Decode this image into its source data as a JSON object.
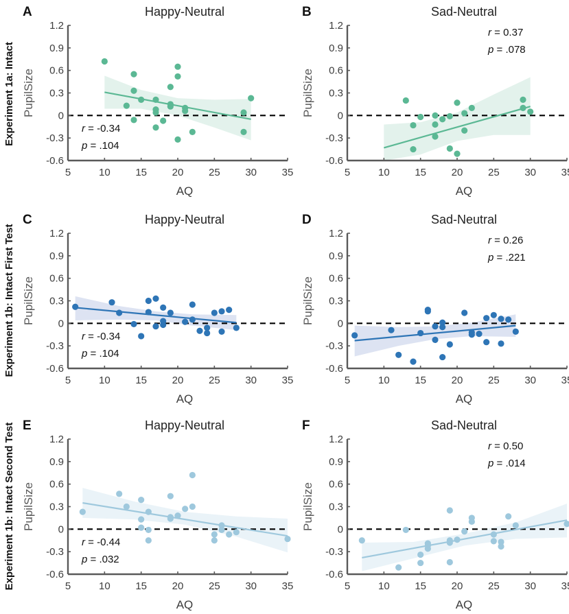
{
  "chart_data": {
    "type": "scatter",
    "row_labels": [
      "Experiment 1a: Intact",
      "Experiment 1b: Intact First Test",
      "Experiment 1b: Intact Second Test"
    ],
    "xlabel": "AQ",
    "ylabel": "PupilSize",
    "xlim": [
      5,
      35
    ],
    "ylim": [
      -0.6,
      1.2
    ],
    "xticks": [
      5,
      10,
      15,
      20,
      25,
      30,
      35
    ],
    "yticks": [
      -0.6,
      -0.3,
      0,
      0.3,
      0.6,
      0.9,
      1.2
    ],
    "ytick_labels": [
      "-0.6",
      "-0.3",
      "0",
      "0.3",
      "0.6",
      "0.9",
      "1.2"
    ],
    "reference_line": {
      "y": 0,
      "style": "dashed",
      "color": "#000000"
    },
    "grid": false,
    "panels": [
      {
        "letter": "A",
        "title": "Happy-Neutral",
        "row": 0,
        "col": 0,
        "color": "#5bb894",
        "band_color": "#e3f2ec",
        "stat_r": "-0.34",
        "stat_p": ".104",
        "stat_position": "bottom-left",
        "fit": {
          "x": [
            10,
            30
          ],
          "y": [
            0.31,
            -0.05
          ]
        },
        "band": {
          "x": [
            10,
            15,
            20,
            25,
            30
          ],
          "upper": [
            0.53,
            0.34,
            0.23,
            0.21,
            0.22
          ],
          "lower": [
            0.09,
            0.09,
            0.0,
            -0.16,
            -0.33
          ]
        },
        "points": [
          [
            10,
            0.72
          ],
          [
            13,
            0.13
          ],
          [
            14,
            0.55
          ],
          [
            14,
            0.33
          ],
          [
            14,
            -0.06
          ],
          [
            15,
            0.21
          ],
          [
            17,
            0.21
          ],
          [
            17,
            0.08
          ],
          [
            17,
            0.04
          ],
          [
            17,
            -0.16
          ],
          [
            18,
            -0.07
          ],
          [
            19,
            0.38
          ],
          [
            19,
            0.15
          ],
          [
            19,
            0.12
          ],
          [
            20,
            0.65
          ],
          [
            20,
            0.52
          ],
          [
            20,
            -0.32
          ],
          [
            21,
            0.1
          ],
          [
            21,
            0.06
          ],
          [
            22,
            -0.22
          ],
          [
            29,
            0.04
          ],
          [
            29,
            -0.22
          ],
          [
            30,
            0.23
          ]
        ]
      },
      {
        "letter": "B",
        "title": "Sad-Neutral",
        "row": 0,
        "col": 1,
        "color": "#5bb894",
        "band_color": "#e3f2ec",
        "stat_r": "0.37",
        "stat_p": ".078",
        "stat_position": "top-right",
        "fit": {
          "x": [
            10,
            30
          ],
          "y": [
            -0.43,
            0.12
          ]
        },
        "band": {
          "x": [
            10,
            15,
            20,
            25,
            30
          ],
          "upper": [
            -0.12,
            -0.09,
            0.04,
            0.28,
            0.51
          ],
          "lower": [
            -0.74,
            -0.52,
            -0.34,
            -0.26,
            -0.26
          ]
        },
        "points": [
          [
            13,
            0.2
          ],
          [
            14,
            -0.13
          ],
          [
            14,
            -0.45
          ],
          [
            15,
            -0.02
          ],
          [
            17,
            0.0
          ],
          [
            17,
            -0.12
          ],
          [
            17,
            -0.28
          ],
          [
            18,
            -0.05
          ],
          [
            19,
            -0.01
          ],
          [
            19,
            -0.44
          ],
          [
            20,
            0.17
          ],
          [
            20,
            -0.51
          ],
          [
            21,
            0.03
          ],
          [
            21,
            -0.2
          ],
          [
            22,
            0.1
          ],
          [
            29,
            0.21
          ],
          [
            29,
            0.1
          ],
          [
            30,
            0.05
          ]
        ]
      },
      {
        "letter": "C",
        "title": "Happy-Neutral",
        "row": 1,
        "col": 0,
        "color": "#2e75b6",
        "band_color": "#dde3f2",
        "stat_r": "-0.34",
        "stat_p": ".104",
        "stat_position": "bottom-left",
        "fit": {
          "x": [
            6,
            28
          ],
          "y": [
            0.21,
            0.01
          ]
        },
        "band": {
          "x": [
            6,
            12,
            17,
            22,
            28
          ],
          "upper": [
            0.36,
            0.23,
            0.16,
            0.12,
            0.11
          ],
          "lower": [
            0.04,
            0.05,
            0.04,
            -0.03,
            -0.09
          ]
        },
        "points": [
          [
            6,
            0.22
          ],
          [
            11,
            0.28
          ],
          [
            12,
            0.14
          ],
          [
            14,
            -0.01
          ],
          [
            15,
            -0.17
          ],
          [
            16,
            0.3
          ],
          [
            16,
            0.15
          ],
          [
            17,
            0.33
          ],
          [
            17,
            -0.04
          ],
          [
            18,
            0.21
          ],
          [
            18,
            0.03
          ],
          [
            18,
            -0.02
          ],
          [
            19,
            0.14
          ],
          [
            21,
            0.02
          ],
          [
            22,
            0.25
          ],
          [
            22,
            0.05
          ],
          [
            23,
            -0.1
          ],
          [
            24,
            -0.06
          ],
          [
            24,
            -0.13
          ],
          [
            25,
            0.14
          ],
          [
            26,
            0.16
          ],
          [
            26,
            -0.11
          ],
          [
            27,
            0.18
          ],
          [
            28,
            -0.06
          ]
        ]
      },
      {
        "letter": "D",
        "title": "Sad-Neutral",
        "row": 1,
        "col": 1,
        "color": "#2e75b6",
        "band_color": "#dde3f2",
        "stat_r": "0.26",
        "stat_p": ".221",
        "stat_position": "top-right",
        "fit": {
          "x": [
            6,
            28
          ],
          "y": [
            -0.23,
            -0.03
          ]
        },
        "band": {
          "x": [
            6,
            12,
            17,
            22,
            28
          ],
          "upper": [
            -0.03,
            -0.05,
            -0.04,
            0.01,
            0.12
          ],
          "lower": [
            -0.44,
            -0.3,
            -0.21,
            -0.17,
            -0.18
          ]
        },
        "points": [
          [
            6,
            -0.16
          ],
          [
            11,
            -0.09
          ],
          [
            12,
            -0.42
          ],
          [
            14,
            -0.51
          ],
          [
            15,
            -0.13
          ],
          [
            16,
            0.18
          ],
          [
            16,
            0.16
          ],
          [
            17,
            -0.04
          ],
          [
            17,
            -0.22
          ],
          [
            18,
            0.01
          ],
          [
            18,
            -0.05
          ],
          [
            18,
            -0.45
          ],
          [
            19,
            -0.28
          ],
          [
            21,
            0.14
          ],
          [
            22,
            -0.12
          ],
          [
            22,
            -0.15
          ],
          [
            23,
            -0.14
          ],
          [
            24,
            0.07
          ],
          [
            24,
            -0.25
          ],
          [
            25,
            0.11
          ],
          [
            26,
            0.06
          ],
          [
            26,
            -0.27
          ],
          [
            27,
            0.05
          ],
          [
            28,
            -0.11
          ]
        ]
      },
      {
        "letter": "E",
        "title": "Happy-Neutral",
        "row": 2,
        "col": 0,
        "color": "#9ec8dd",
        "band_color": "#eaf3f8",
        "stat_r": "-0.44",
        "stat_p": ".032",
        "stat_position": "bottom-left",
        "fit": {
          "x": [
            7,
            35
          ],
          "y": [
            0.35,
            -0.09
          ]
        },
        "band": {
          "x": [
            7,
            14,
            21,
            28,
            35
          ],
          "upper": [
            0.55,
            0.37,
            0.23,
            0.17,
            0.14
          ],
          "lower": [
            0.15,
            0.13,
            0.06,
            -0.1,
            -0.31
          ]
        },
        "points": [
          [
            7,
            0.23
          ],
          [
            12,
            0.47
          ],
          [
            13,
            0.3
          ],
          [
            15,
            0.39
          ],
          [
            15,
            0.13
          ],
          [
            15,
            0.02
          ],
          [
            16,
            0.23
          ],
          [
            16,
            -0.01
          ],
          [
            16,
            -0.15
          ],
          [
            19,
            0.44
          ],
          [
            19,
            0.16
          ],
          [
            19,
            0.14
          ],
          [
            20,
            0.18
          ],
          [
            21,
            0.27
          ],
          [
            22,
            0.72
          ],
          [
            22,
            0.3
          ],
          [
            25,
            -0.07
          ],
          [
            25,
            -0.15
          ],
          [
            26,
            0.05
          ],
          [
            26,
            -0.01
          ],
          [
            27,
            -0.07
          ],
          [
            28,
            -0.04
          ],
          [
            35,
            -0.13
          ]
        ]
      },
      {
        "letter": "F",
        "title": "Sad-Neutral",
        "row": 2,
        "col": 1,
        "color": "#9ec8dd",
        "band_color": "#eaf3f8",
        "stat_r": "0.50",
        "stat_p": ".014",
        "stat_position": "top-right",
        "fit": {
          "x": [
            7,
            35
          ],
          "y": [
            -0.38,
            0.12
          ]
        },
        "band": {
          "x": [
            7,
            14,
            21,
            28,
            35
          ],
          "upper": [
            -0.18,
            -0.17,
            -0.06,
            0.09,
            0.34
          ],
          "lower": [
            -0.56,
            -0.39,
            -0.22,
            -0.13,
            -0.11
          ]
        },
        "points": [
          [
            7,
            -0.15
          ],
          [
            12,
            -0.51
          ],
          [
            13,
            -0.01
          ],
          [
            15,
            -0.34
          ],
          [
            15,
            -0.45
          ],
          [
            16,
            -0.19
          ],
          [
            16,
            -0.22
          ],
          [
            16,
            -0.26
          ],
          [
            19,
            0.25
          ],
          [
            19,
            -0.15
          ],
          [
            19,
            -0.18
          ],
          [
            19,
            -0.44
          ],
          [
            20,
            -0.14
          ],
          [
            21,
            -0.03
          ],
          [
            22,
            0.15
          ],
          [
            22,
            0.1
          ],
          [
            25,
            -0.07
          ],
          [
            25,
            -0.16
          ],
          [
            26,
            -0.17
          ],
          [
            26,
            -0.23
          ],
          [
            27,
            0.17
          ],
          [
            28,
            0.05
          ],
          [
            35,
            0.07
          ]
        ]
      }
    ]
  }
}
